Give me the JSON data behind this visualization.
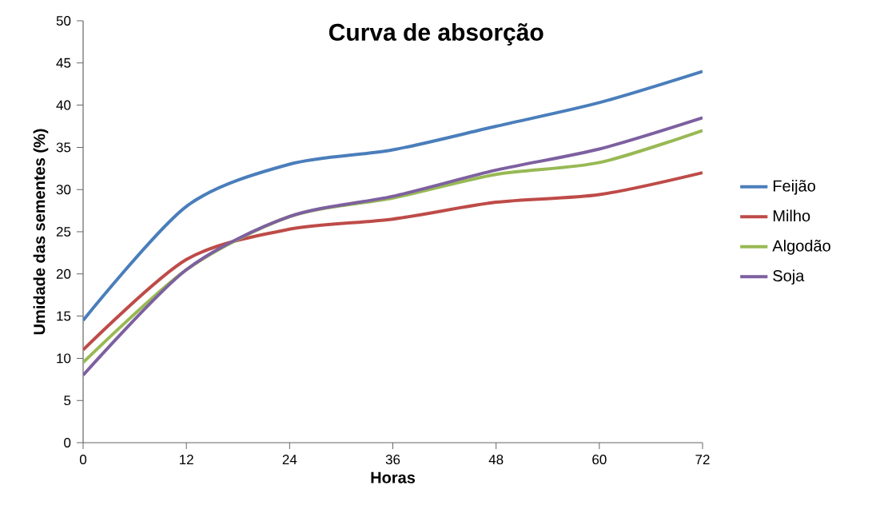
{
  "chart_data": {
    "type": "line",
    "title": "Curva de absorção",
    "xlabel": "Horas",
    "ylabel": "Umidade das sementes (%)",
    "x": [
      0,
      12,
      24,
      36,
      48,
      60,
      72
    ],
    "series": [
      {
        "name": "Feijão",
        "color": "#4a7ebb",
        "values": [
          14.5,
          28,
          33,
          34.7,
          37.5,
          40.3,
          44
        ]
      },
      {
        "name": "Milho",
        "color": "#be4b48",
        "values": [
          11,
          21.7,
          25.3,
          26.5,
          28.5,
          29.4,
          32
        ]
      },
      {
        "name": "Algodão",
        "color": "#98b954",
        "values": [
          9.5,
          20.5,
          26.8,
          29,
          31.8,
          33.2,
          37
        ]
      },
      {
        "name": "Soja",
        "color": "#7d60a0",
        "values": [
          8,
          20.5,
          26.8,
          29.2,
          32.3,
          34.8,
          38.5
        ]
      }
    ],
    "xlim": [
      0,
      72
    ],
    "xticks": [
      0,
      12,
      24,
      36,
      48,
      60,
      72
    ],
    "ylim": [
      0,
      50
    ],
    "yticks": [
      0,
      5,
      10,
      15,
      20,
      25,
      30,
      35,
      40,
      45,
      50
    ],
    "grid": false,
    "legend": "right",
    "marker": "none",
    "line_style": "solid"
  }
}
